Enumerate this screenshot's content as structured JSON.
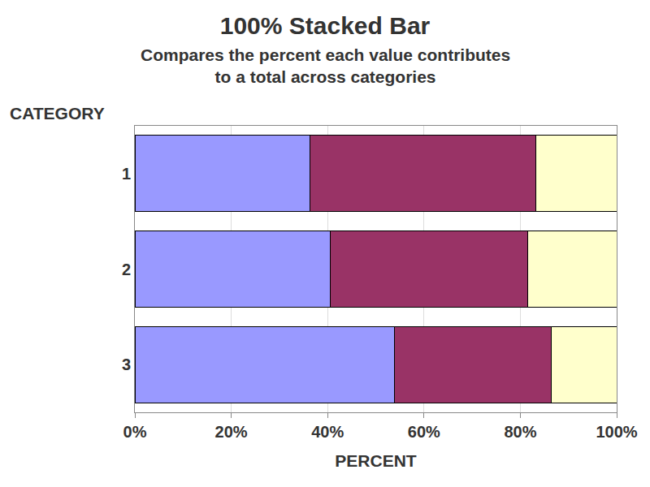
{
  "chart_data": {
    "type": "bar",
    "orientation": "horizontal",
    "stacked": true,
    "title": "100% Stacked Bar",
    "subtitle": [
      "Compares the percent each value contributes",
      "to a total across categories"
    ],
    "y_label": "CATEGORY",
    "x_label": "PERCENT",
    "categories": [
      "1",
      "2",
      "3"
    ],
    "series": [
      {
        "color": "#9999ff",
        "values": [
          36.3,
          40.5,
          53.8
        ]
      },
      {
        "color": "#993366",
        "values": [
          47.0,
          41.0,
          32.7
        ]
      },
      {
        "color": "#ffffcc",
        "values": [
          16.7,
          18.5,
          13.5
        ]
      }
    ],
    "xlim": [
      0,
      100
    ],
    "xticks": [
      {
        "value": 0,
        "label": "0%"
      },
      {
        "value": 20,
        "label": "20%"
      },
      {
        "value": 40,
        "label": "40%"
      },
      {
        "value": 60,
        "label": "60%"
      },
      {
        "value": 80,
        "label": "80%"
      },
      {
        "value": 100,
        "label": "100%"
      }
    ],
    "grid": true
  }
}
